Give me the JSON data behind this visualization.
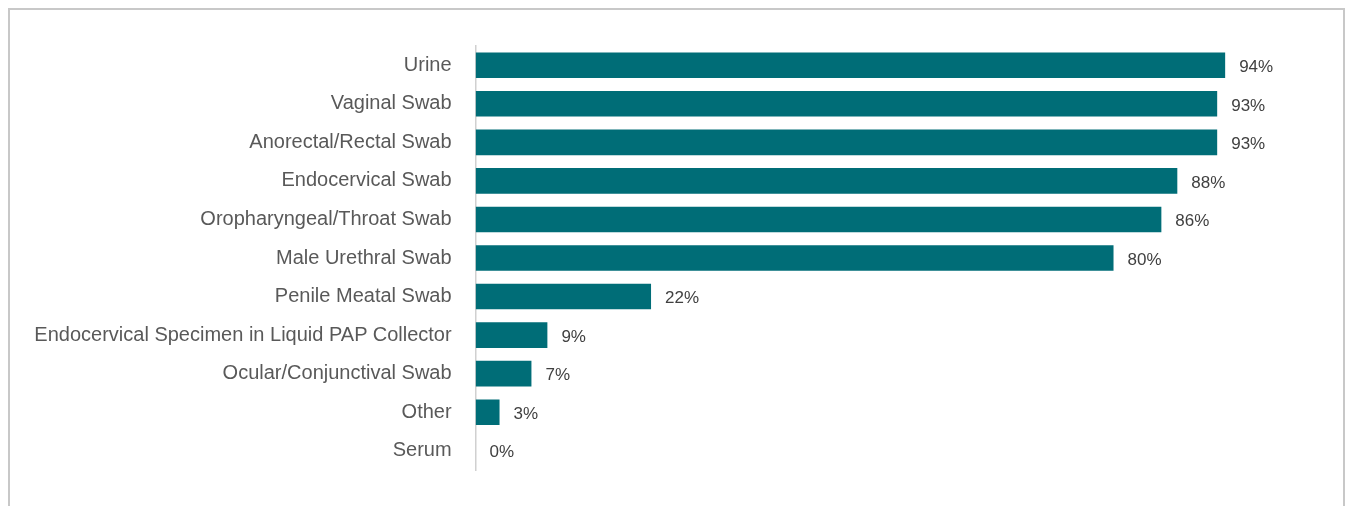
{
  "chart_data": {
    "type": "bar",
    "orientation": "horizontal",
    "categories": [
      "Urine",
      "Vaginal Swab",
      "Anorectal/Rectal Swab",
      "Endocervical Swab",
      "Oropharyngeal/Throat Swab",
      "Male Urethral Swab",
      "Penile Meatal Swab",
      "Endocervical Specimen in Liquid PAP Collector",
      "Ocular/Conjunctival Swab",
      "Other",
      "Serum"
    ],
    "values": [
      94,
      93,
      93,
      88,
      86,
      80,
      22,
      9,
      7,
      3,
      0
    ],
    "value_labels": [
      "94%",
      "93%",
      "93%",
      "88%",
      "86%",
      "80%",
      "22%",
      "9%",
      "7%",
      "3%",
      "0%"
    ],
    "color": "#006d77",
    "tick_labels": "y",
    "grid": false,
    "legend": false
  }
}
